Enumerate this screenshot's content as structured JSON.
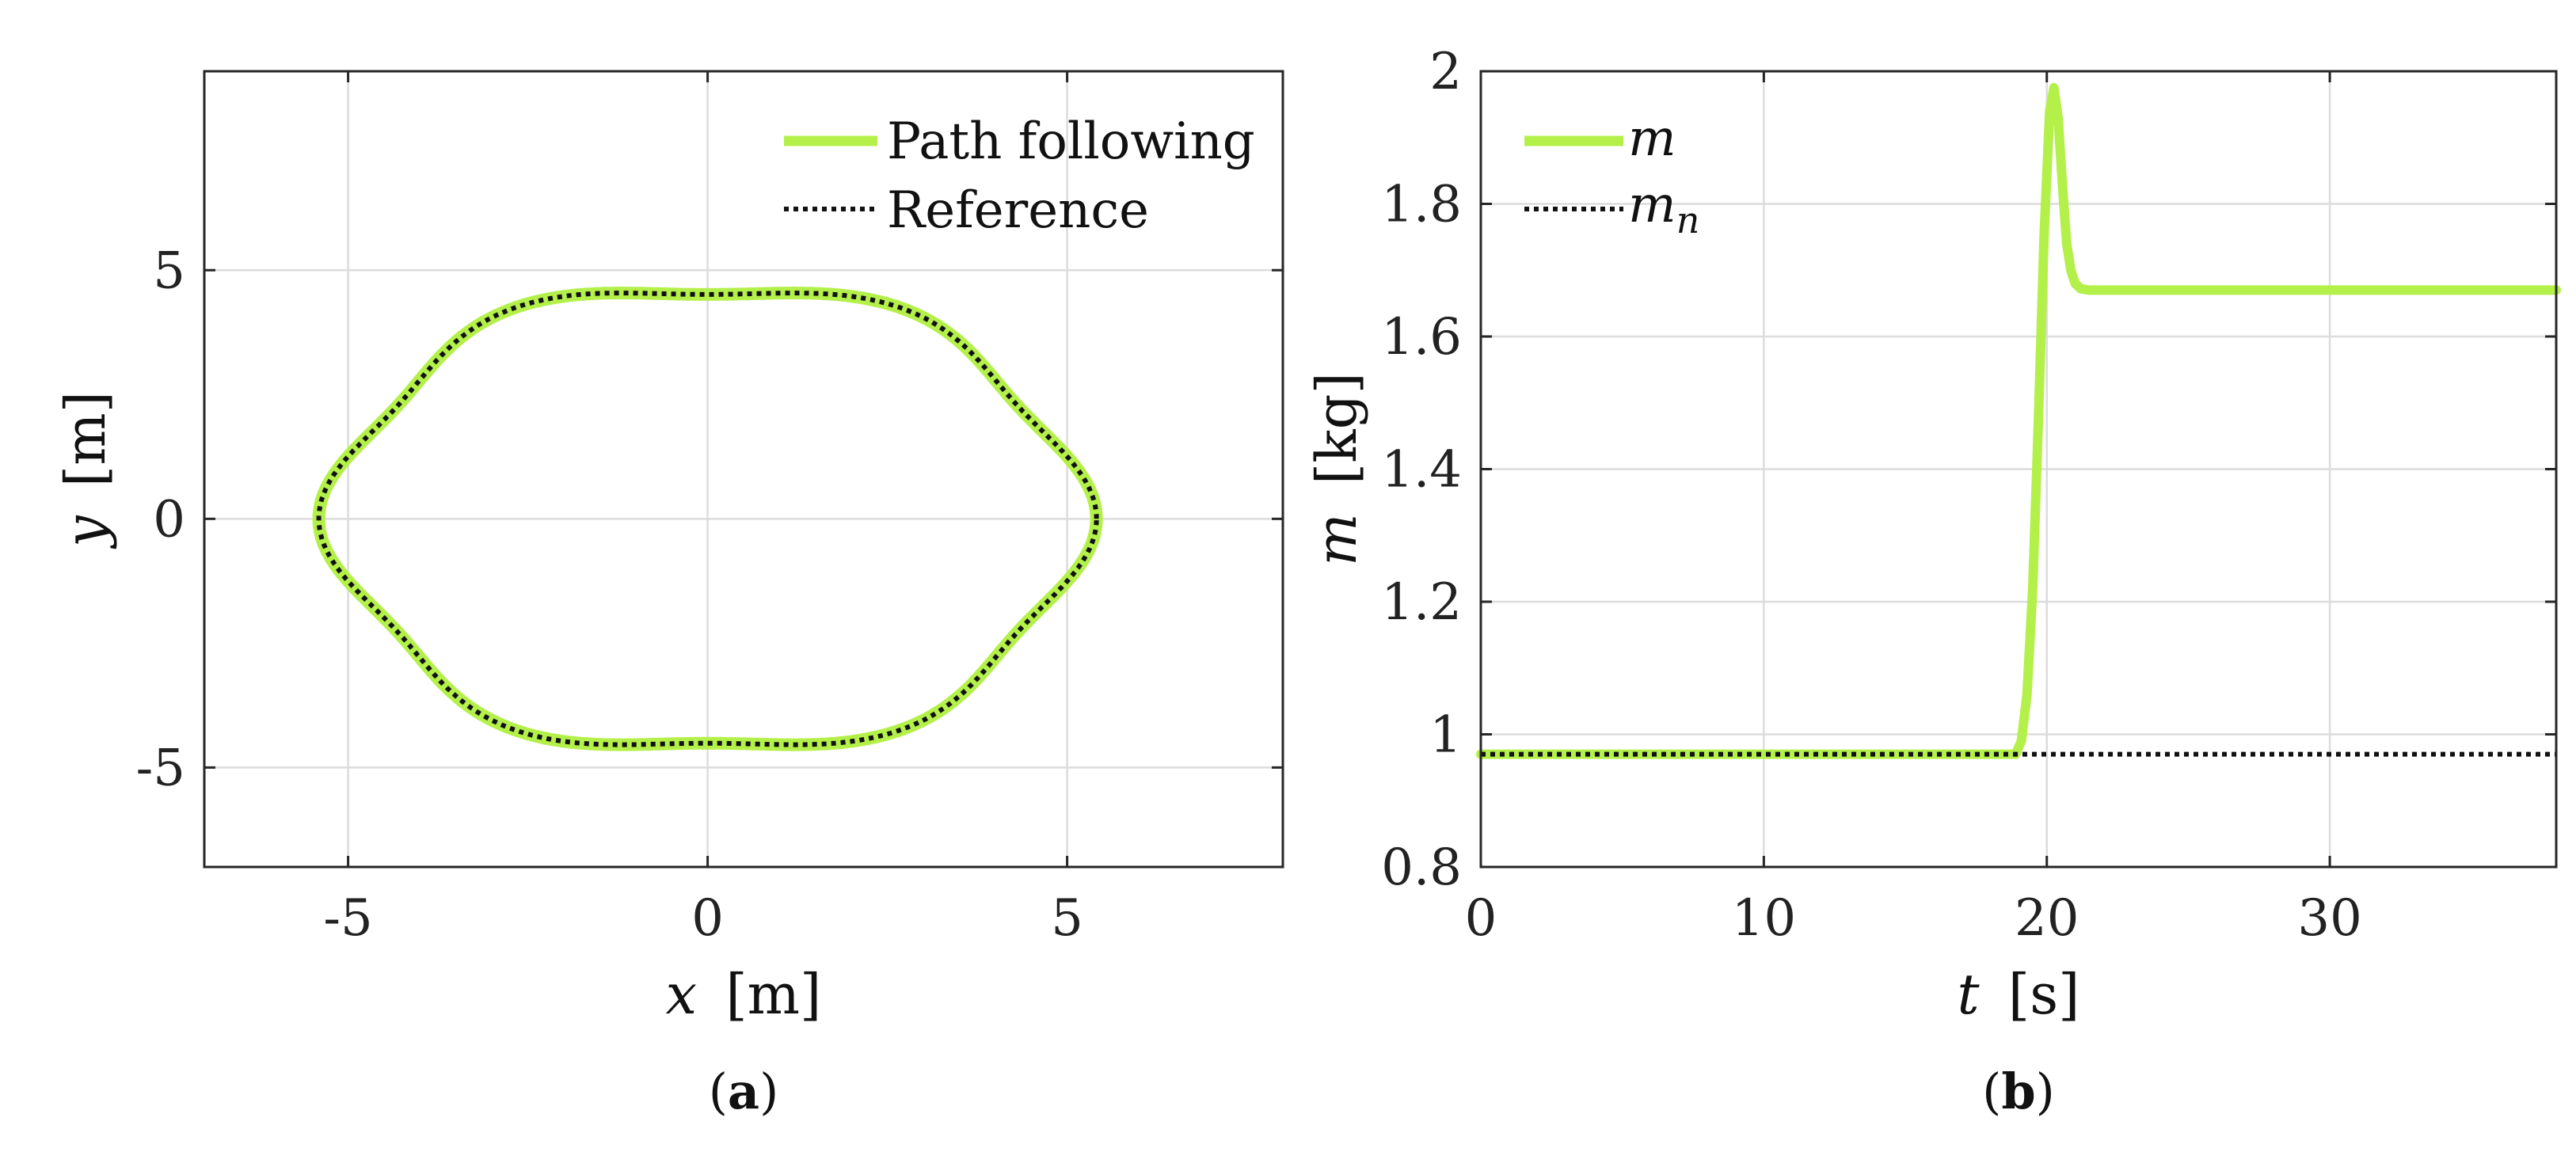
{
  "chart_data": [
    {
      "type": "line",
      "panel": "a",
      "caption_letter": "a",
      "caption_open": "(",
      "caption_close": ")",
      "xlabel_var": "x",
      "xlabel_unit": "[m]",
      "ylabel_var": "y",
      "ylabel_unit": "[m]",
      "xlim": [
        -7,
        8
      ],
      "ylim": [
        -7,
        9
      ],
      "xticks": [
        -5,
        0,
        5
      ],
      "yticks": [
        -5,
        0,
        5
      ],
      "xtick_labels": [
        "-5",
        "0",
        "5"
      ],
      "ytick_labels": [
        "-5",
        "0",
        "5"
      ],
      "grid": true,
      "legend_position": "top-right",
      "curve_model": {
        "r0": 5.0,
        "amplitude": 0.2,
        "lobes": 6,
        "x_scale": 1.04,
        "y_scale": 0.94
      },
      "series": [
        {
          "name": "Path following",
          "label": "Path following",
          "color": "#b4f04a",
          "style": "solid"
        },
        {
          "name": "Reference",
          "label": "Reference",
          "color": "#111111",
          "style": "dotted"
        }
      ]
    },
    {
      "type": "line",
      "panel": "b",
      "caption_letter": "b",
      "caption_open": "(",
      "caption_close": ")",
      "xlabel_var": "t",
      "xlabel_unit": "[s]",
      "ylabel_var": "m",
      "ylabel_unit": "[kg]",
      "xlim": [
        0,
        38
      ],
      "ylim": [
        0.8,
        2
      ],
      "xticks": [
        0,
        10,
        20,
        30
      ],
      "yticks": [
        0.8,
        1,
        1.2,
        1.4,
        1.6,
        1.8,
        2
      ],
      "xtick_labels": [
        "0",
        "10",
        "20",
        "30"
      ],
      "ytick_labels": [
        "0.8",
        "1",
        "1.2",
        "1.4",
        "1.6",
        "1.8",
        "2"
      ],
      "grid": true,
      "legend_position": "top-left",
      "series": [
        {
          "name": "m",
          "label_main": "m",
          "label_sub": "",
          "color": "#b4f04a",
          "style": "solid",
          "x": [
            0,
            18.9,
            19.1,
            19.3,
            19.5,
            19.7,
            19.9,
            20.1,
            20.25,
            20.4,
            20.55,
            20.7,
            20.85,
            21.0,
            21.2,
            21.5,
            22,
            25,
            30,
            38
          ],
          "y": [
            0.97,
            0.97,
            0.99,
            1.06,
            1.22,
            1.47,
            1.75,
            1.94,
            1.975,
            1.93,
            1.83,
            1.74,
            1.7,
            1.68,
            1.672,
            1.67,
            1.67,
            1.67,
            1.67,
            1.67
          ]
        },
        {
          "name": "m_n",
          "label_main": "m",
          "label_sub": "n",
          "color": "#111111",
          "style": "dotted",
          "x": [
            0,
            38
          ],
          "y": [
            0.97,
            0.97
          ]
        }
      ]
    }
  ]
}
